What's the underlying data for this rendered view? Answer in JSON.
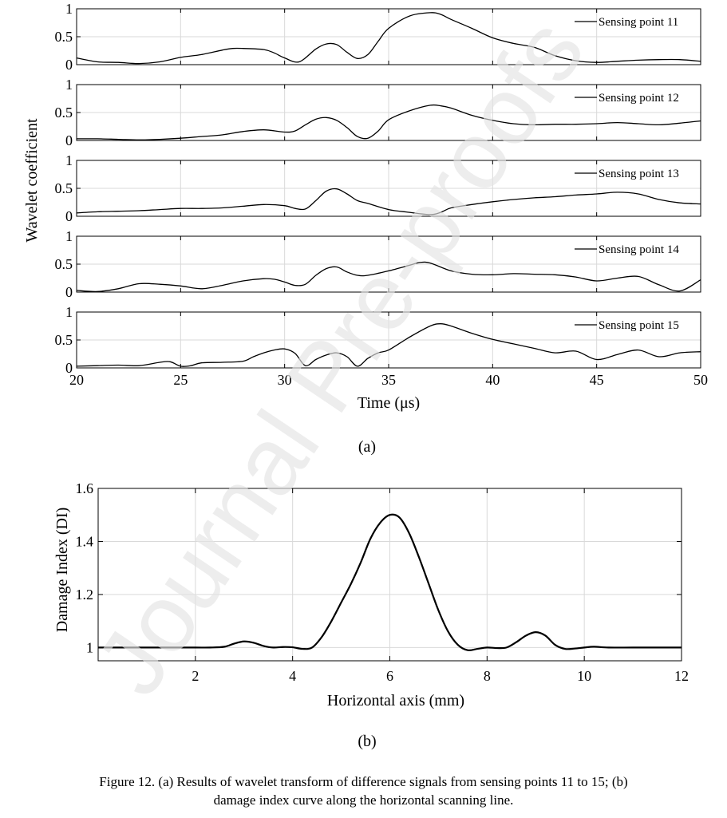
{
  "figure_a": {
    "label": "(a)",
    "ylabel": "Wavelet coefficient",
    "xlabel": "Time (μs)",
    "xlim": [
      20,
      50
    ],
    "x_ticks": [
      20,
      25,
      30,
      35,
      40,
      45,
      50
    ],
    "ylim": [
      0,
      1
    ],
    "y_ticks": [
      0,
      0.5,
      1
    ],
    "grid": true,
    "legend_position": "top-right"
  },
  "figure_b": {
    "label": "(b)"
  },
  "caption": {
    "line1": "Figure 12. (a) Results of wavelet transform of difference signals from sensing points 11 to 15; (b)",
    "line2": "damage index curve along the horizontal scanning line."
  },
  "watermark": "Journal Pre-proofs",
  "colors": {
    "line": "#000000",
    "grid": "#d9d9d9",
    "watermark": "#e3e3e3"
  },
  "chart_data": [
    {
      "type": "line",
      "title": "",
      "xlabel": "Time (μs)",
      "ylabel": "Wavelet coefficient",
      "xlim": [
        20,
        50
      ],
      "ylim": [
        0,
        1
      ],
      "legend_position": "top-right",
      "series": [
        {
          "name": "Sensing point 11",
          "x": [
            20,
            21,
            22,
            23,
            24,
            25,
            26,
            27,
            27.5,
            28,
            29,
            29.5,
            30,
            30.7,
            31.5,
            32,
            32.5,
            33,
            33.5,
            34,
            34.5,
            35,
            36,
            37,
            37.5,
            38,
            39,
            40,
            41,
            42,
            43,
            44,
            45,
            46,
            47,
            48,
            49,
            50
          ],
          "y": [
            0.12,
            0.05,
            0.04,
            0.02,
            0.05,
            0.13,
            0.18,
            0.26,
            0.29,
            0.29,
            0.27,
            0.21,
            0.12,
            0.05,
            0.28,
            0.37,
            0.36,
            0.22,
            0.11,
            0.18,
            0.42,
            0.65,
            0.87,
            0.93,
            0.9,
            0.81,
            0.65,
            0.48,
            0.38,
            0.31,
            0.16,
            0.07,
            0.04,
            0.06,
            0.08,
            0.09,
            0.09,
            0.06
          ]
        },
        {
          "name": "Sensing point 12",
          "x": [
            20,
            21,
            22,
            23,
            24,
            25,
            26,
            27,
            28,
            29,
            30,
            30.5,
            31,
            31.5,
            32,
            32.5,
            33,
            33.5,
            34,
            34.5,
            35,
            36,
            37,
            37.5,
            38,
            39,
            40,
            41,
            42,
            43,
            44,
            45,
            46,
            47,
            48,
            49,
            50
          ],
          "y": [
            0.03,
            0.03,
            0.02,
            0.01,
            0.02,
            0.04,
            0.07,
            0.1,
            0.16,
            0.19,
            0.15,
            0.17,
            0.28,
            0.38,
            0.41,
            0.36,
            0.23,
            0.07,
            0.04,
            0.17,
            0.37,
            0.53,
            0.63,
            0.62,
            0.58,
            0.45,
            0.36,
            0.3,
            0.28,
            0.29,
            0.29,
            0.3,
            0.32,
            0.3,
            0.28,
            0.31,
            0.35
          ]
        },
        {
          "name": "Sensing point 13",
          "x": [
            20,
            21,
            22,
            23,
            24,
            25,
            26,
            27,
            28,
            29,
            30,
            30.5,
            31,
            31.5,
            32,
            32.5,
            33,
            33.5,
            34,
            35,
            36,
            37,
            37.5,
            38,
            39,
            40,
            41,
            42,
            43,
            44,
            45,
            46,
            47,
            48,
            49,
            50
          ],
          "y": [
            0.06,
            0.08,
            0.09,
            0.1,
            0.12,
            0.14,
            0.14,
            0.15,
            0.18,
            0.21,
            0.19,
            0.14,
            0.13,
            0.28,
            0.45,
            0.49,
            0.4,
            0.28,
            0.23,
            0.12,
            0.07,
            0.03,
            0.07,
            0.15,
            0.21,
            0.26,
            0.3,
            0.33,
            0.35,
            0.38,
            0.4,
            0.43,
            0.4,
            0.3,
            0.24,
            0.22
          ]
        },
        {
          "name": "Sensing point 14",
          "x": [
            20,
            21,
            22,
            23,
            24,
            25,
            26,
            27,
            28,
            29,
            29.5,
            30,
            30.5,
            31,
            31.5,
            32,
            32.5,
            33,
            33.5,
            34,
            35,
            36,
            36.5,
            37,
            38,
            39,
            40,
            41,
            42,
            43,
            44,
            45,
            46,
            47,
            48,
            49,
            50
          ],
          "y": [
            0.03,
            0.01,
            0.06,
            0.15,
            0.14,
            0.11,
            0.06,
            0.12,
            0.2,
            0.24,
            0.23,
            0.18,
            0.12,
            0.14,
            0.3,
            0.42,
            0.45,
            0.36,
            0.3,
            0.3,
            0.38,
            0.48,
            0.53,
            0.52,
            0.38,
            0.32,
            0.31,
            0.33,
            0.32,
            0.31,
            0.27,
            0.2,
            0.25,
            0.28,
            0.13,
            0.02,
            0.22
          ]
        },
        {
          "name": "Sensing point 15",
          "x": [
            20,
            21,
            22,
            23,
            24,
            24.5,
            25,
            25.5,
            26,
            27,
            28,
            28.5,
            29,
            29.5,
            30,
            30.5,
            31,
            31.5,
            32,
            32.5,
            33,
            33.5,
            34,
            34.5,
            35,
            36,
            37,
            37.5,
            38,
            39,
            40,
            41,
            42,
            43,
            44,
            45,
            46,
            47,
            48,
            49,
            50
          ],
          "y": [
            0.03,
            0.04,
            0.05,
            0.04,
            0.1,
            0.11,
            0.03,
            0.04,
            0.09,
            0.1,
            0.12,
            0.2,
            0.27,
            0.32,
            0.34,
            0.26,
            0.04,
            0.15,
            0.23,
            0.27,
            0.2,
            0.03,
            0.17,
            0.27,
            0.32,
            0.55,
            0.75,
            0.79,
            0.75,
            0.62,
            0.51,
            0.43,
            0.35,
            0.27,
            0.3,
            0.15,
            0.24,
            0.32,
            0.2,
            0.27,
            0.29
          ]
        }
      ]
    },
    {
      "type": "line",
      "title": "",
      "xlabel": "Horizontal axis (mm)",
      "ylabel": "Damage Index (DI)",
      "xlim": [
        0,
        12
      ],
      "ylim": [
        0.95,
        1.6
      ],
      "grid": true,
      "x_ticks": [
        2,
        4,
        6,
        8,
        10,
        12
      ],
      "y_ticks": [
        1,
        1.2,
        1.4,
        1.6
      ],
      "y_tick_labels": [
        "1",
        "1.2",
        "1.4",
        "1.6"
      ],
      "series": [
        {
          "x": [
            0,
            0.5,
            1,
            1.5,
            2,
            2.3,
            2.6,
            2.8,
            3.0,
            3.2,
            3.4,
            3.6,
            3.8,
            4.0,
            4.2,
            4.4,
            4.6,
            4.8,
            5.0,
            5.2,
            5.4,
            5.6,
            5.8,
            6.0,
            6.2,
            6.4,
            6.6,
            6.8,
            7.0,
            7.2,
            7.4,
            7.6,
            7.8,
            8.0,
            8.2,
            8.4,
            8.6,
            8.8,
            9.0,
            9.2,
            9.4,
            9.6,
            9.8,
            10.0,
            10.2,
            10.5,
            11,
            11.5,
            12
          ],
          "y": [
            1,
            1,
            1,
            1,
            1,
            1,
            1.003,
            1.015,
            1.023,
            1.018,
            1.006,
            1.0,
            1.002,
            1.001,
            0.995,
            1.0,
            1.04,
            1.1,
            1.17,
            1.24,
            1.32,
            1.41,
            1.47,
            1.5,
            1.49,
            1.43,
            1.34,
            1.24,
            1.14,
            1.06,
            1.01,
            0.99,
            0.995,
            1.0,
            0.998,
            1.0,
            1.02,
            1.045,
            1.058,
            1.045,
            1.01,
            0.995,
            0.996,
            1.0,
            1.003,
            1,
            1,
            1,
            1
          ]
        }
      ]
    }
  ]
}
